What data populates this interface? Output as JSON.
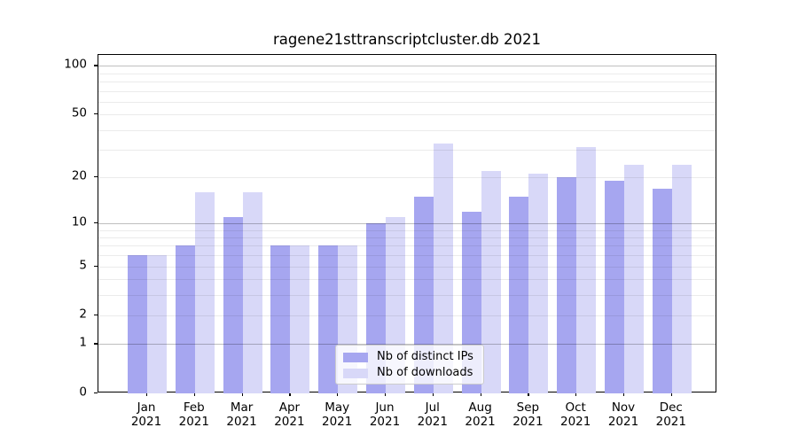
{
  "chart_data": {
    "type": "bar",
    "title": "ragene21sttranscriptcluster.db 2021",
    "categories": [
      "Jan",
      "Feb",
      "Mar",
      "Apr",
      "May",
      "Jun",
      "Jul",
      "Aug",
      "Sep",
      "Oct",
      "Nov",
      "Dec"
    ],
    "category_year": "2021",
    "series": [
      {
        "name": "Nb of distinct IPs",
        "color": "#a6a6f0",
        "values": [
          6,
          7,
          11,
          7,
          7,
          10,
          15,
          12,
          15,
          20,
          19,
          17
        ]
      },
      {
        "name": "Nb of downloads",
        "color": "#d8d8f8",
        "values": [
          6,
          16,
          16,
          7,
          7,
          11,
          33,
          22,
          21,
          31,
          24,
          24
        ]
      }
    ],
    "xlabel": "",
    "ylabel": "",
    "yscale": "log1p",
    "ylim": [
      0,
      117
    ],
    "yticks": [
      0,
      1,
      2,
      5,
      10,
      20,
      50,
      100
    ],
    "major_gridlines": [
      1,
      10,
      100
    ],
    "minor_gridlines": [
      2,
      3,
      4,
      5,
      6,
      7,
      8,
      9,
      20,
      30,
      40,
      50,
      60,
      70,
      80,
      90
    ],
    "grid": true,
    "legend_position": "lower center"
  },
  "colors": {
    "background": "#ffffff",
    "axis_frame": "#000000",
    "text": "#000000",
    "major_grid": "#bfbfbf",
    "minor_grid": "#ebebeb",
    "legend_border": "#cccccc"
  }
}
